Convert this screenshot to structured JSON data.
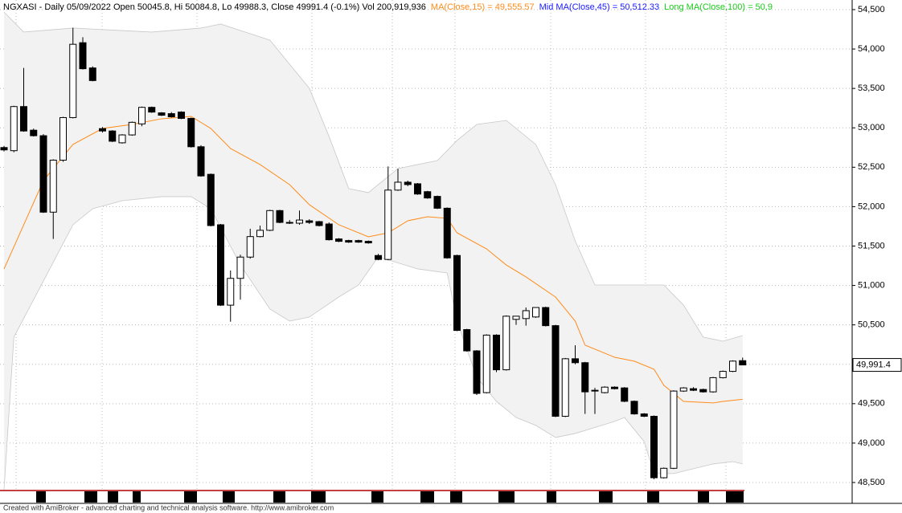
{
  "chart_data": {
    "type": "candlestick",
    "title": "NGXASI - Daily 05/09/2022 Open 50045.8, Hi 50084.8, Lo 49988.3, Close 49991.4 (-0.1%) Vol 200,919,936",
    "indicator_labels": [
      {
        "text": "MA(Close,15) = 49,555.57",
        "color": "#ff8c1a"
      },
      {
        "text": "Mid MA(Close,45) = 50,512.33",
        "color": "#1a1aff"
      },
      {
        "text": "Long MA(Close,100) = 50,9",
        "color": "#1acc1a"
      }
    ],
    "last_price_label": "49,991.4",
    "footer": "Created with AmiBroker - advanced charting and technical analysis software. http://www.amibroker.com",
    "ylim": [
      48398,
      54622
    ],
    "yticks": [
      {
        "value": 48500,
        "label": "48,500"
      },
      {
        "value": 49000,
        "label": "49,000"
      },
      {
        "value": 49500,
        "label": "49,500"
      },
      {
        "value": 50000,
        "label": "50,000"
      },
      {
        "value": 50500,
        "label": "50,500"
      },
      {
        "value": 51000,
        "label": "51,000"
      },
      {
        "value": 51500,
        "label": "51,500"
      },
      {
        "value": 52000,
        "label": "52,000"
      },
      {
        "value": 52500,
        "label": "52,500"
      },
      {
        "value": 53000,
        "label": "53,000"
      },
      {
        "value": 53500,
        "label": "53,500"
      },
      {
        "value": 54000,
        "label": "54,000"
      },
      {
        "value": 54500,
        "label": "54,500"
      }
    ],
    "grid": true,
    "up_color": "#ffffff",
    "down_color": "#000000",
    "open": [
      52750,
      52710,
      53270,
      52970,
      52900,
      51930,
      52590,
      53130,
      54080,
      53760,
      52990,
      52960,
      52810,
      52910,
      53050,
      53260,
      53190,
      53180,
      53200,
      53120,
      52760,
      52410,
      51770,
      50750,
      51090,
      51360,
      51620,
      51700,
      51950,
      51800,
      51790,
      51820,
      51810,
      51780,
      51590,
      51570,
      51570,
      51560,
      51380,
      51330,
      52210,
      52310,
      52290,
      52190,
      52130,
      51980,
      51380,
      50440,
      50170,
      49640,
      50370,
      49930,
      50570,
      50580,
      50600,
      50720,
      50490,
      49340,
      50070,
      50020,
      49670,
      49640,
      49710,
      49700,
      49530,
      49370,
      49340,
      48560,
      48680,
      49660,
      49690,
      49680,
      49650,
      49830,
      49910,
      50045.8
    ],
    "high": [
      52770,
      53280,
      53760,
      52990,
      52920,
      52600,
      53140,
      54270,
      54150,
      53780,
      53010,
      52970,
      52920,
      53080,
      53270,
      53270,
      53200,
      53200,
      53210,
      53130,
      52780,
      52420,
      51780,
      51190,
      51390,
      51720,
      51760,
      51960,
      51960,
      51830,
      51950,
      51840,
      51820,
      51800,
      51600,
      51580,
      51580,
      51570,
      51400,
      52510,
      52480,
      52330,
      52300,
      52200,
      52140,
      51990,
      51390,
      50450,
      50180,
      50380,
      50380,
      50620,
      50610,
      50720,
      50720,
      50730,
      50500,
      50080,
      50240,
      50030,
      49700,
      49720,
      49720,
      49710,
      49540,
      49380,
      49350,
      48690,
      49670,
      49710,
      49710,
      49690,
      49840,
      49920,
      50050,
      50084.8
    ],
    "low": [
      52700,
      52690,
      52950,
      52890,
      51920,
      51590,
      52570,
      53120,
      53740,
      53590,
      52940,
      52820,
      52800,
      52900,
      53020,
      53190,
      53150,
      53130,
      53110,
      52750,
      52380,
      51750,
      50740,
      50540,
      50820,
      51340,
      51610,
      51690,
      51790,
      51780,
      51770,
      51780,
      51750,
      51570,
      51550,
      51540,
      51540,
      51530,
      51320,
      51320,
      52200,
      52260,
      52150,
      52100,
      51970,
      51340,
      50420,
      50160,
      49610,
      49630,
      49900,
      49920,
      50500,
      50490,
      50590,
      50480,
      49330,
      49330,
      50000,
      49370,
      49370,
      49630,
      49680,
      49520,
      49360,
      49330,
      48540,
      48550,
      48670,
      49650,
      49660,
      49640,
      49640,
      49820,
      49900,
      49988.3
    ],
    "close": [
      52720,
      53270,
      52960,
      52900,
      51930,
      52590,
      53130,
      54060,
      53750,
      53600,
      52960,
      52830,
      52910,
      53070,
      53260,
      53200,
      53160,
      53140,
      53120,
      52760,
      52390,
      51760,
      50750,
      51090,
      51360,
      51620,
      51700,
      51950,
      51800,
      51790,
      51830,
      51800,
      51760,
      51580,
      51560,
      51550,
      51550,
      51540,
      51330,
      52210,
      52310,
      52280,
      52160,
      52110,
      51980,
      51350,
      50430,
      50170,
      49630,
      50370,
      49930,
      50610,
      50610,
      50680,
      50720,
      50490,
      49340,
      50070,
      50020,
      49650,
      49660,
      49710,
      49690,
      49530,
      49370,
      49340,
      48560,
      48680,
      49660,
      49700,
      49670,
      49650,
      49830,
      49910,
      50040,
      49991.4
    ],
    "series": [
      {
        "name": "MA(Close,15)",
        "color": "#ff8c1a",
        "x": [
          0,
          4,
          7,
          10,
          13,
          16,
          19,
          21,
          23,
          26,
          29,
          31,
          34,
          37,
          39,
          41,
          43,
          45,
          46,
          49,
          51,
          53,
          56,
          58,
          59,
          62,
          64,
          66,
          67,
          69,
          72,
          73,
          75
        ],
        "values": [
          51209,
          52330,
          52789,
          52992,
          53043,
          53115,
          53145,
          52992,
          52738,
          52534,
          52279,
          52025,
          51770,
          51617,
          51668,
          51821,
          51872,
          51852,
          51668,
          51464,
          51260,
          51108,
          50853,
          50548,
          50243,
          50089,
          50039,
          49937,
          49733,
          49529,
          49509,
          49529,
          49555.57
        ]
      },
      {
        "name": "Upper band",
        "color": "#c8c8c8",
        "x": [
          0,
          2,
          7,
          15,
          20,
          22,
          24,
          27,
          31,
          33,
          35,
          37,
          40,
          44,
          46,
          48,
          51,
          54,
          56,
          58,
          60,
          65,
          67,
          69,
          71,
          73,
          75
        ],
        "values": [
          54469,
          54215,
          54266,
          54215,
          54266,
          54317,
          54235,
          54113,
          53502,
          52891,
          52229,
          52178,
          52483,
          52585,
          52840,
          53043,
          53094,
          52789,
          52279,
          51566,
          51006,
          51006,
          51006,
          50752,
          50345,
          50293,
          50364
        ]
      },
      {
        "name": "Lower band",
        "color": "#c8c8c8",
        "x": [
          0,
          1,
          4,
          7,
          9,
          12,
          16,
          19,
          21,
          24,
          27,
          29,
          31,
          34,
          36,
          38,
          42,
          45,
          46,
          48,
          50,
          52,
          54,
          56,
          58,
          62,
          63,
          65,
          66,
          68,
          72,
          74,
          75
        ],
        "values": [
          48409,
          50344,
          51057,
          51770,
          51974,
          52075,
          52127,
          52127,
          51974,
          51261,
          50701,
          50548,
          50599,
          50854,
          51006,
          51363,
          51210,
          51159,
          50548,
          49835,
          49529,
          49325,
          49224,
          49071,
          49122,
          49275,
          49325,
          49020,
          48613,
          48613,
          48735,
          48765,
          48735
        ]
      }
    ]
  }
}
